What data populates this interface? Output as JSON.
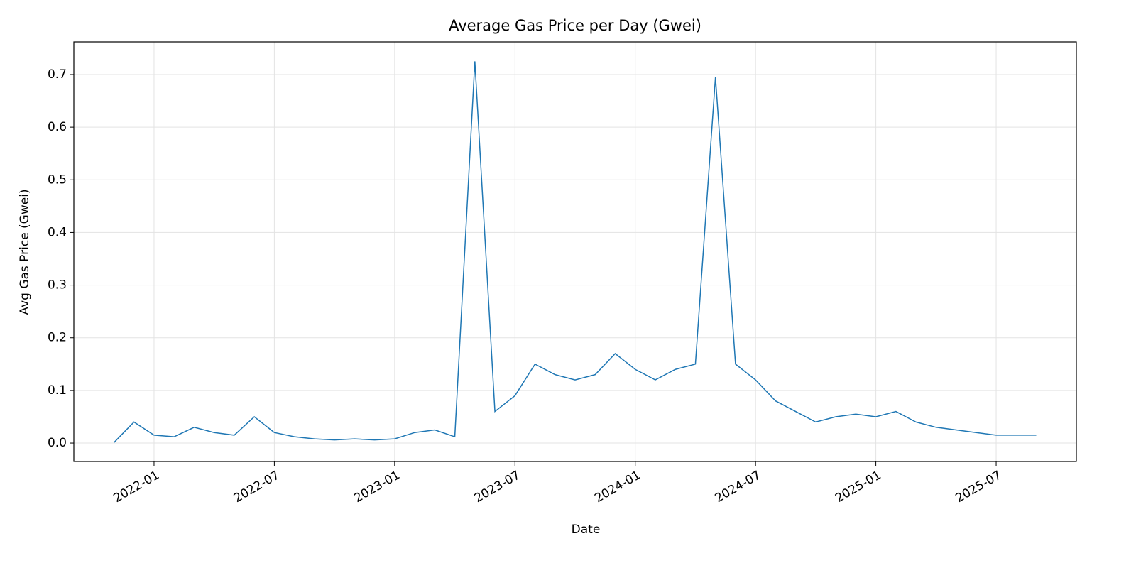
{
  "chart_data": {
    "type": "line",
    "title": "Average Gas Price per Day (Gwei)",
    "x_label": "Date",
    "y_label": "Avg Gas Price (Gwei)",
    "x": [
      "2021-11",
      "2021-12",
      "2022-01",
      "2022-02",
      "2022-03",
      "2022-04",
      "2022-05",
      "2022-06",
      "2022-07",
      "2022-08",
      "2022-09",
      "2022-10",
      "2022-11",
      "2022-12",
      "2023-01",
      "2023-02",
      "2023-03",
      "2023-04",
      "2023-05",
      "2023-06",
      "2023-07",
      "2023-08",
      "2023-09",
      "2023-10",
      "2023-11",
      "2023-12",
      "2024-01",
      "2024-02",
      "2024-03",
      "2024-04",
      "2024-05",
      "2024-06",
      "2024-07",
      "2024-08",
      "2024-09",
      "2024-10",
      "2024-11",
      "2024-12",
      "2025-01",
      "2025-02",
      "2025-03",
      "2025-04",
      "2025-05",
      "2025-06",
      "2025-07",
      "2025-08",
      "2025-09"
    ],
    "series": [
      {
        "name": "Avg Gas Price",
        "color": "#1f77b4",
        "values": [
          0.001,
          0.04,
          0.015,
          0.012,
          0.03,
          0.02,
          0.015,
          0.05,
          0.02,
          0.012,
          0.008,
          0.006,
          0.008,
          0.006,
          0.008,
          0.02,
          0.025,
          0.012,
          0.725,
          0.06,
          0.09,
          0.15,
          0.13,
          0.12,
          0.13,
          0.17,
          0.14,
          0.12,
          0.14,
          0.15,
          0.695,
          0.15,
          0.12,
          0.08,
          0.06,
          0.04,
          0.05,
          0.055,
          0.05,
          0.06,
          0.04,
          0.03,
          0.025,
          0.02,
          0.015,
          0.015,
          0.015
        ]
      }
    ],
    "xlim": [
      "2021-09",
      "2025-11"
    ],
    "xticks": [
      "2022-01",
      "2022-07",
      "2023-01",
      "2023-07",
      "2024-01",
      "2024-07",
      "2025-01",
      "2025-07"
    ],
    "ylim": [
      -0.035,
      0.762
    ],
    "yticks": [
      {
        "value": 0,
        "label": "0.0"
      },
      0.1,
      0.2,
      0.3,
      0.4,
      0.5,
      0.6,
      0.7
    ],
    "grid": true
  }
}
